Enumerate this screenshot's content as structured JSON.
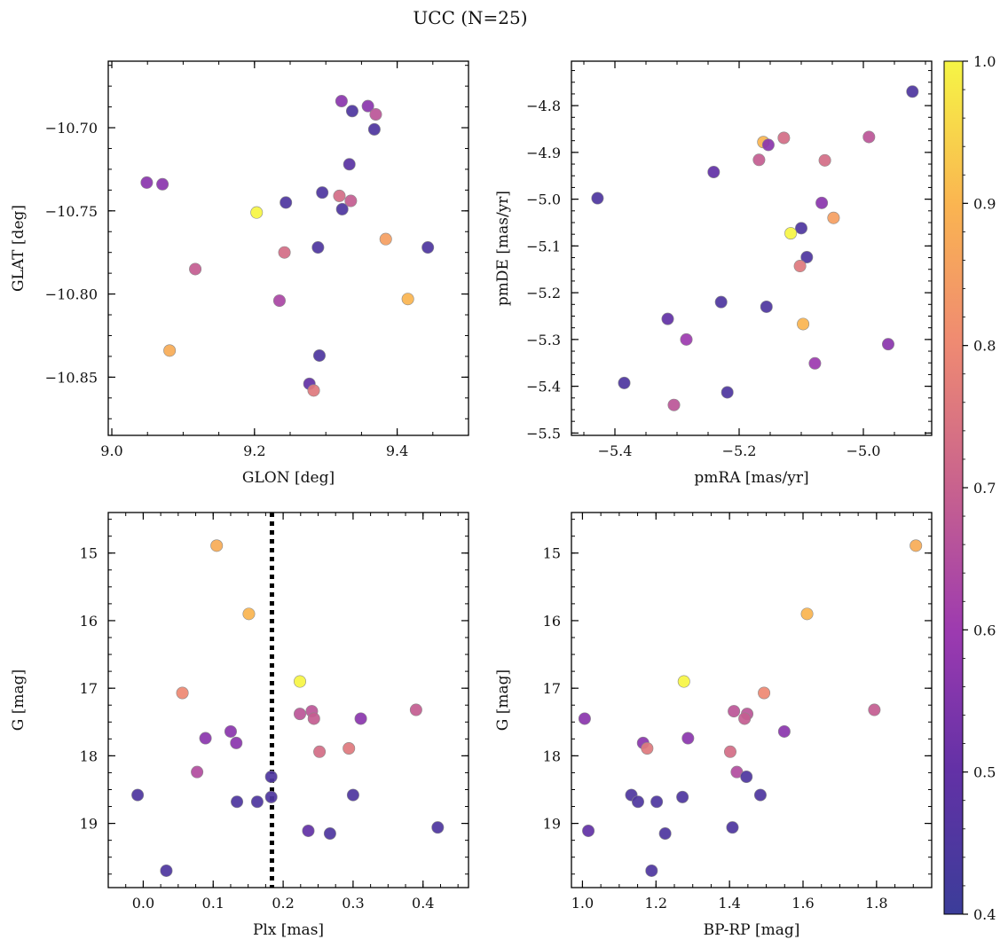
{
  "title": "UCC (N=25)",
  "colorbar": {
    "min": 0.4,
    "max": 1.0,
    "ticks": [
      0.4,
      0.5,
      0.6,
      0.7,
      0.8,
      0.9,
      1.0
    ],
    "tick_labels": [
      "0.4",
      "0.5",
      "0.6",
      "0.7",
      "0.8",
      "0.9",
      "1.0"
    ],
    "colormap": "plasma"
  },
  "chart_data": [
    {
      "type": "scatter",
      "xlabel": "GLON [deg]",
      "ylabel": "GLAT [deg]",
      "xlim": [
        8.995,
        9.5
      ],
      "ylim": [
        -10.885,
        -10.66
      ],
      "xticks": [
        9.0,
        9.2,
        9.4
      ],
      "xtick_labels": [
        "9.0",
        "9.2",
        "9.4"
      ],
      "yticks": [
        -10.7,
        -10.75,
        -10.8,
        -10.85
      ],
      "ytick_labels": [
        "−10.70",
        "−10.75",
        "−10.80",
        "−10.85"
      ],
      "points": [
        {
          "x": 9.049,
          "y": -10.733,
          "c": 0.57
        },
        {
          "x": 9.071,
          "y": -10.734,
          "c": 0.57
        },
        {
          "x": 9.117,
          "y": -10.785,
          "c": 0.69
        },
        {
          "x": 9.081,
          "y": -10.834,
          "c": 0.88
        },
        {
          "x": 9.203,
          "y": -10.751,
          "c": 1.0
        },
        {
          "x": 9.244,
          "y": -10.745,
          "c": 0.45
        },
        {
          "x": 9.242,
          "y": -10.775,
          "c": 0.73
        },
        {
          "x": 9.235,
          "y": -10.804,
          "c": 0.63
        },
        {
          "x": 9.289,
          "y": -10.772,
          "c": 0.45
        },
        {
          "x": 9.295,
          "y": -10.739,
          "c": 0.45
        },
        {
          "x": 9.322,
          "y": -10.684,
          "c": 0.57
        },
        {
          "x": 9.337,
          "y": -10.69,
          "c": 0.45
        },
        {
          "x": 9.359,
          "y": -10.687,
          "c": 0.57
        },
        {
          "x": 9.37,
          "y": -10.692,
          "c": 0.67
        },
        {
          "x": 9.368,
          "y": -10.701,
          "c": 0.45
        },
        {
          "x": 9.333,
          "y": -10.722,
          "c": 0.48
        },
        {
          "x": 9.319,
          "y": -10.741,
          "c": 0.73
        },
        {
          "x": 9.323,
          "y": -10.749,
          "c": 0.45
        },
        {
          "x": 9.335,
          "y": -10.744,
          "c": 0.69
        },
        {
          "x": 9.384,
          "y": -10.767,
          "c": 0.85
        },
        {
          "x": 9.443,
          "y": -10.772,
          "c": 0.45
        },
        {
          "x": 9.415,
          "y": -10.803,
          "c": 0.9
        },
        {
          "x": 9.291,
          "y": -10.837,
          "c": 0.45
        },
        {
          "x": 9.277,
          "y": -10.854,
          "c": 0.5
        },
        {
          "x": 9.283,
          "y": -10.858,
          "c": 0.76
        }
      ]
    },
    {
      "type": "scatter",
      "xlabel": "pmRA [mas/yr]",
      "ylabel": "pmDE [mas/yr]",
      "xlim": [
        -5.47,
        -4.89
      ],
      "ylim": [
        -5.505,
        -4.705
      ],
      "xticks": [
        -5.4,
        -5.2,
        -5.0
      ],
      "xtick_labels": [
        "−5.4",
        "−5.2",
        "−5.0"
      ],
      "yticks": [
        -4.8,
        -4.9,
        -5.0,
        -5.1,
        -5.2,
        -5.3,
        -5.4,
        -5.5
      ],
      "ytick_labels": [
        "−4.8",
        "−4.9",
        "−5.0",
        "−5.1",
        "−5.2",
        "−5.3",
        "−5.4",
        "−5.5"
      ],
      "points": [
        {
          "x": -4.921,
          "y": -4.77,
          "c": 0.45
        },
        {
          "x": -5.161,
          "y": -4.878,
          "c": 0.9
        },
        {
          "x": -5.153,
          "y": -4.884,
          "c": 0.57
        },
        {
          "x": -5.128,
          "y": -4.869,
          "c": 0.73
        },
        {
          "x": -5.168,
          "y": -4.916,
          "c": 0.69
        },
        {
          "x": -5.062,
          "y": -4.917,
          "c": 0.73
        },
        {
          "x": -4.991,
          "y": -4.867,
          "c": 0.67
        },
        {
          "x": -5.241,
          "y": -4.942,
          "c": 0.5
        },
        {
          "x": -5.428,
          "y": -4.998,
          "c": 0.45
        },
        {
          "x": -5.067,
          "y": -5.008,
          "c": 0.57
        },
        {
          "x": -5.048,
          "y": -5.04,
          "c": 0.85
        },
        {
          "x": -5.1,
          "y": -5.062,
          "c": 0.45
        },
        {
          "x": -5.117,
          "y": -5.073,
          "c": 1.0
        },
        {
          "x": -5.091,
          "y": -5.124,
          "c": 0.45
        },
        {
          "x": -5.102,
          "y": -5.143,
          "c": 0.76
        },
        {
          "x": -5.229,
          "y": -5.22,
          "c": 0.45
        },
        {
          "x": -5.156,
          "y": -5.23,
          "c": 0.45
        },
        {
          "x": -5.315,
          "y": -5.256,
          "c": 0.5
        },
        {
          "x": -5.097,
          "y": -5.267,
          "c": 0.9
        },
        {
          "x": -5.285,
          "y": -5.3,
          "c": 0.6
        },
        {
          "x": -4.96,
          "y": -5.31,
          "c": 0.57
        },
        {
          "x": -5.078,
          "y": -5.351,
          "c": 0.6
        },
        {
          "x": -5.385,
          "y": -5.393,
          "c": 0.45
        },
        {
          "x": -5.219,
          "y": -5.413,
          "c": 0.45
        },
        {
          "x": -5.305,
          "y": -5.44,
          "c": 0.67
        }
      ]
    },
    {
      "type": "scatter",
      "xlabel": "Plx [mas]",
      "ylabel": "G [mag]",
      "xlim": [
        -0.05,
        0.465
      ],
      "ylim": [
        19.95,
        14.4
      ],
      "y_inverted": true,
      "vline_x": 0.184,
      "xticks": [
        0.0,
        0.1,
        0.2,
        0.3,
        0.4
      ],
      "xtick_labels": [
        "0.0",
        "0.1",
        "0.2",
        "0.3",
        "0.4"
      ],
      "yticks": [
        15,
        16,
        17,
        18,
        19
      ],
      "ytick_labels": [
        "15",
        "16",
        "17",
        "18",
        "19"
      ],
      "points": [
        {
          "x": 0.105,
          "y": 14.89,
          "c": 0.88
        },
        {
          "x": 0.151,
          "y": 15.9,
          "c": 0.9
        },
        {
          "x": 0.224,
          "y": 16.9,
          "c": 1.0
        },
        {
          "x": 0.056,
          "y": 17.07,
          "c": 0.8
        },
        {
          "x": 0.39,
          "y": 17.32,
          "c": 0.69
        },
        {
          "x": 0.241,
          "y": 17.34,
          "c": 0.67
        },
        {
          "x": 0.224,
          "y": 17.38,
          "c": 0.67
        },
        {
          "x": 0.244,
          "y": 17.45,
          "c": 0.69
        },
        {
          "x": 0.311,
          "y": 17.45,
          "c": 0.57
        },
        {
          "x": 0.125,
          "y": 17.64,
          "c": 0.57
        },
        {
          "x": 0.089,
          "y": 17.74,
          "c": 0.57
        },
        {
          "x": 0.133,
          "y": 17.81,
          "c": 0.57
        },
        {
          "x": 0.294,
          "y": 17.89,
          "c": 0.76
        },
        {
          "x": 0.252,
          "y": 17.94,
          "c": 0.73
        },
        {
          "x": 0.077,
          "y": 18.24,
          "c": 0.65
        },
        {
          "x": 0.183,
          "y": 18.31,
          "c": 0.45
        },
        {
          "x": -0.008,
          "y": 18.58,
          "c": 0.45
        },
        {
          "x": 0.3,
          "y": 18.58,
          "c": 0.45
        },
        {
          "x": 0.183,
          "y": 18.61,
          "c": 0.45
        },
        {
          "x": 0.134,
          "y": 18.68,
          "c": 0.45
        },
        {
          "x": 0.163,
          "y": 18.68,
          "c": 0.45
        },
        {
          "x": 0.421,
          "y": 19.06,
          "c": 0.45
        },
        {
          "x": 0.236,
          "y": 19.11,
          "c": 0.5
        },
        {
          "x": 0.267,
          "y": 19.15,
          "c": 0.45
        },
        {
          "x": 0.033,
          "y": 19.7,
          "c": 0.45
        }
      ]
    },
    {
      "type": "scatter",
      "xlabel": "BP-RP [mag]",
      "ylabel": "G [mag]",
      "xlim": [
        0.97,
        1.95
      ],
      "ylim": [
        19.95,
        14.4
      ],
      "y_inverted": true,
      "xticks": [
        1.0,
        1.2,
        1.4,
        1.6,
        1.8
      ],
      "xtick_labels": [
        "1.0",
        "1.2",
        "1.4",
        "1.6",
        "1.8"
      ],
      "yticks": [
        15,
        16,
        17,
        18,
        19
      ],
      "ytick_labels": [
        "15",
        "16",
        "17",
        "18",
        "19"
      ],
      "points": [
        {
          "x": 1.907,
          "y": 14.89,
          "c": 0.88
        },
        {
          "x": 1.611,
          "y": 15.9,
          "c": 0.9
        },
        {
          "x": 1.276,
          "y": 16.9,
          "c": 1.0
        },
        {
          "x": 1.494,
          "y": 17.07,
          "c": 0.8
        },
        {
          "x": 1.794,
          "y": 17.32,
          "c": 0.69
        },
        {
          "x": 1.412,
          "y": 17.34,
          "c": 0.67
        },
        {
          "x": 1.448,
          "y": 17.38,
          "c": 0.67
        },
        {
          "x": 1.441,
          "y": 17.45,
          "c": 0.69
        },
        {
          "x": 1.006,
          "y": 17.45,
          "c": 0.57
        },
        {
          "x": 1.549,
          "y": 17.64,
          "c": 0.57
        },
        {
          "x": 1.287,
          "y": 17.74,
          "c": 0.57
        },
        {
          "x": 1.165,
          "y": 17.81,
          "c": 0.57
        },
        {
          "x": 1.176,
          "y": 17.89,
          "c": 0.76
        },
        {
          "x": 1.402,
          "y": 17.94,
          "c": 0.73
        },
        {
          "x": 1.42,
          "y": 18.24,
          "c": 0.65
        },
        {
          "x": 1.446,
          "y": 18.31,
          "c": 0.45
        },
        {
          "x": 1.133,
          "y": 18.58,
          "c": 0.45
        },
        {
          "x": 1.484,
          "y": 18.58,
          "c": 0.45
        },
        {
          "x": 1.272,
          "y": 18.61,
          "c": 0.45
        },
        {
          "x": 1.151,
          "y": 18.68,
          "c": 0.45
        },
        {
          "x": 1.202,
          "y": 18.68,
          "c": 0.45
        },
        {
          "x": 1.408,
          "y": 19.06,
          "c": 0.45
        },
        {
          "x": 1.016,
          "y": 19.11,
          "c": 0.5
        },
        {
          "x": 1.225,
          "y": 19.15,
          "c": 0.45
        },
        {
          "x": 1.188,
          "y": 19.7,
          "c": 0.45
        }
      ]
    }
  ]
}
